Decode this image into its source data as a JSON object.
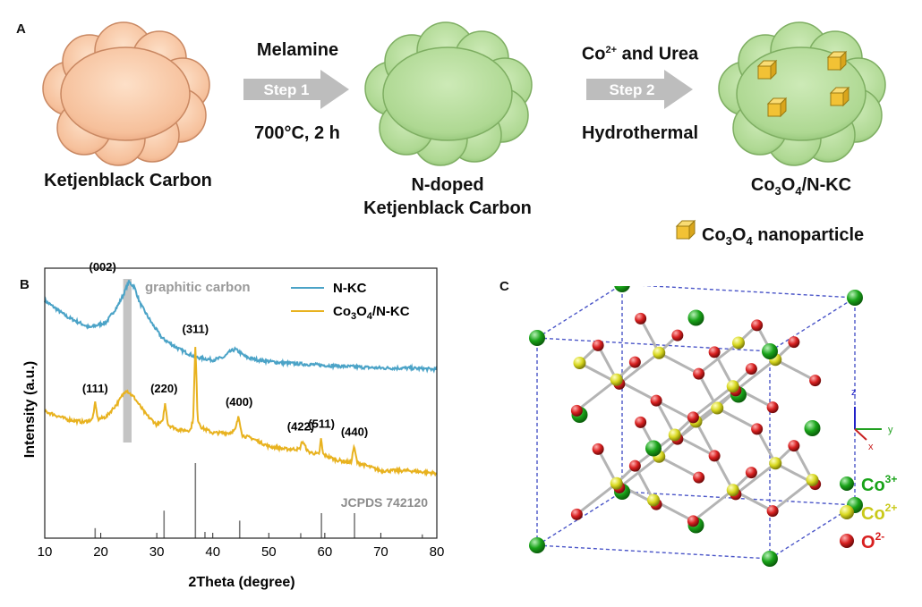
{
  "panelA": {
    "letter": "A",
    "label_ketjen": "Ketjenblack Carbon",
    "label_ndoped_1": "N-doped",
    "label_ndoped_2": "Ketjenblack Carbon",
    "label_final": "Co3O4/N-KC",
    "step1": {
      "above": "Melamine",
      "arrow": "Step 1",
      "below": "700°C, 2 h"
    },
    "step2": {
      "above_suffix": " and Urea",
      "ion": "Co",
      "ion_charge": "2+",
      "arrow": "Step 2",
      "below": "Hydrothermal"
    },
    "legend": {
      "text": "Co3O4 nanoparticle"
    },
    "colors": {
      "cloud_peach": "#f9c9a8",
      "cloud_green": "#b3dc96",
      "cube": "#f2c235",
      "arrow": "#bdbdbd"
    }
  },
  "panelB": {
    "letter": "B",
    "ylabel": "Intensity (a.u.)",
    "xlabel": "2Theta (degree)",
    "band_label": "graphitic carbon",
    "jcpds_label": "JCPDS 742120",
    "legend": [
      {
        "name": "N-KC",
        "color": "#4ba3c7"
      },
      {
        "name": "Co3O4/N-KC",
        "color": "#e8b21f"
      }
    ]
  },
  "panelC": {
    "letter": "C",
    "axes": {
      "z": "z",
      "y": "y",
      "x": "x"
    },
    "legend": [
      {
        "ion": "Co",
        "charge": "3+",
        "color": "#19a319"
      },
      {
        "ion": "Co",
        "charge": "2+",
        "color": "#d8d820"
      },
      {
        "ion": "O",
        "charge": "2-",
        "color": "#d82020"
      }
    ]
  },
  "chart_data": {
    "type": "line",
    "title": "",
    "xlabel": "2Theta (degree)",
    "ylabel": "Intensity (a.u.)",
    "xlim": [
      10,
      80
    ],
    "xticks": [
      10,
      20,
      30,
      40,
      50,
      60,
      70,
      80
    ],
    "series": [
      {
        "name": "N-KC",
        "color": "#4ba3c7",
        "x": [
          10,
          14,
          18,
          21,
          23,
          24,
          25,
          26,
          27,
          29,
          31,
          34,
          37,
          40,
          42,
          43,
          44,
          46,
          48,
          52,
          56,
          60,
          65,
          70,
          75,
          80
        ],
        "y": [
          0.88,
          0.82,
          0.78,
          0.8,
          0.86,
          0.9,
          0.95,
          0.93,
          0.87,
          0.8,
          0.74,
          0.7,
          0.67,
          0.66,
          0.67,
          0.69,
          0.7,
          0.67,
          0.66,
          0.65,
          0.645,
          0.64,
          0.635,
          0.63,
          0.63,
          0.625
        ]
      },
      {
        "name": "Co3O4/N-KC",
        "color": "#e8b21f",
        "x": [
          10,
          14,
          17,
          18.5,
          19,
          19.5,
          21,
          23,
          24.5,
          26,
          28,
          30,
          31,
          31.5,
          32,
          34,
          36,
          36.5,
          36.9,
          37.3,
          38,
          40,
          43,
          44,
          44.6,
          45.3,
          47,
          50,
          53,
          55.5,
          56,
          57,
          59,
          59.3,
          59.7,
          62,
          64.7,
          65.2,
          65.8,
          70,
          75,
          80
        ],
        "y": [
          0.47,
          0.44,
          0.43,
          0.44,
          0.5,
          0.44,
          0.45,
          0.5,
          0.55,
          0.52,
          0.46,
          0.42,
          0.43,
          0.5,
          0.42,
          0.4,
          0.4,
          0.44,
          0.72,
          0.44,
          0.41,
          0.39,
          0.39,
          0.4,
          0.45,
          0.38,
          0.37,
          0.34,
          0.33,
          0.33,
          0.36,
          0.32,
          0.31,
          0.37,
          0.31,
          0.29,
          0.28,
          0.34,
          0.28,
          0.25,
          0.25,
          0.24
        ]
      }
    ],
    "peak_labels": [
      {
        "text": "(002)",
        "x": 25.0,
        "y": 0.95
      },
      {
        "text": "(111)",
        "x": 19.0,
        "y": 0.5
      },
      {
        "text": "(220)",
        "x": 31.3,
        "y": 0.5
      },
      {
        "text": "(311)",
        "x": 36.9,
        "y": 0.72
      },
      {
        "text": "(400)",
        "x": 44.7,
        "y": 0.45
      },
      {
        "text": "(422)",
        "x": 55.7,
        "y": 0.36
      },
      {
        "text": "(511)",
        "x": 59.4,
        "y": 0.37
      },
      {
        "text": "(440)",
        "x": 65.3,
        "y": 0.34
      }
    ],
    "reference_lines": {
      "label": "JCPDS 742120",
      "x": [
        19.0,
        31.3,
        36.9,
        38.6,
        44.8,
        55.7,
        59.4,
        65.3,
        77.4
      ],
      "rel_intensity": [
        0.08,
        0.22,
        0.6,
        0.05,
        0.14,
        0.04,
        0.2,
        0.2,
        0.03
      ]
    },
    "highlight_band": {
      "label": "graphitic carbon",
      "x": [
        24.0,
        25.5
      ]
    }
  }
}
